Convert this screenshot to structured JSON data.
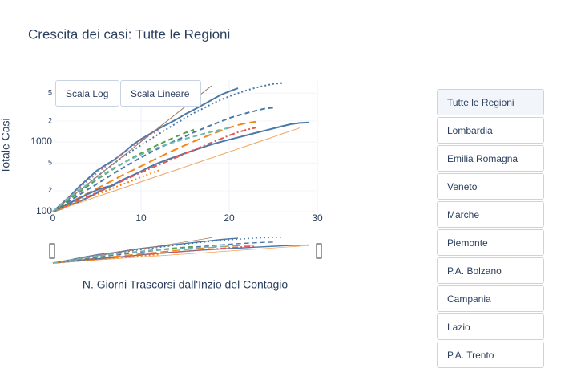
{
  "chart_data": {
    "type": "line",
    "title": "Crescita dei casi: Tutte le Regioni",
    "x_label": "N. Giorni Trascorsi dall'Inzio del Contagio",
    "y_label": "Totale Casi",
    "log_y": true,
    "grid": true,
    "xlim": [
      0,
      30
    ],
    "xticks": [
      0,
      10,
      20,
      30
    ],
    "ylim": [
      100,
      7700
    ],
    "yticks": [
      100,
      {
        "value": 200,
        "label": "2"
      },
      {
        "value": 500,
        "label": "5"
      },
      1000,
      {
        "value": 2000,
        "label": "2"
      },
      {
        "value": 5000,
        "label": "5"
      }
    ],
    "series": [
      {
        "color": "#4c78a8",
        "dash": "solid",
        "width": 2,
        "x": [
          0,
          1,
          2,
          3,
          4,
          5,
          6,
          7,
          8,
          9,
          10,
          11,
          12,
          13,
          14,
          15,
          16,
          17,
          18,
          19,
          20,
          21
        ],
        "values": [
          100,
          130,
          170,
          230,
          300,
          390,
          470,
          560,
          700,
          900,
          1100,
          1300,
          1550,
          1800,
          2100,
          2500,
          2900,
          3400,
          4000,
          4700,
          5300,
          5900
        ]
      },
      {
        "color": "#4c78a8",
        "dash": "dot",
        "width": 2,
        "x": [
          0,
          1,
          2,
          3,
          4,
          5,
          6,
          7,
          8,
          9,
          10,
          11,
          12,
          13,
          14,
          15,
          16,
          17,
          18,
          19,
          20,
          21,
          22,
          23,
          24,
          25,
          26
        ],
        "values": [
          100,
          125,
          160,
          200,
          250,
          320,
          400,
          500,
          620,
          750,
          900,
          1080,
          1300,
          1550,
          1850,
          2200,
          2600,
          3000,
          3500,
          4000,
          4500,
          5000,
          5500,
          6000,
          6400,
          6800,
          7000
        ]
      },
      {
        "color": "#4c78a8",
        "dash": "dash",
        "width": 2,
        "x": [
          0,
          1,
          2,
          3,
          4,
          5,
          6,
          7,
          8,
          9,
          10,
          11,
          12,
          13,
          14,
          15,
          16,
          17,
          18,
          19,
          20,
          21,
          22,
          23,
          24,
          25
        ],
        "values": [
          100,
          120,
          145,
          175,
          210,
          250,
          300,
          360,
          430,
          510,
          600,
          700,
          810,
          930,
          1060,
          1200,
          1380,
          1550,
          1750,
          1950,
          2200,
          2400,
          2600,
          2800,
          3000,
          3100
        ]
      },
      {
        "color": "#4c78a8",
        "dash": "solid",
        "width": 2,
        "x": [
          0,
          1,
          2,
          3,
          4,
          5,
          6,
          7,
          8,
          9,
          10,
          11,
          12,
          13,
          14,
          15,
          16,
          17,
          18,
          19,
          20,
          21,
          22,
          23,
          24,
          25,
          26,
          27,
          28,
          29
        ],
        "values": [
          100,
          110,
          125,
          140,
          160,
          185,
          215,
          250,
          290,
          330,
          380,
          440,
          500,
          560,
          620,
          690,
          760,
          840,
          920,
          1000,
          1080,
          1160,
          1250,
          1350,
          1450,
          1560,
          1680,
          1800,
          1870,
          1900
        ]
      },
      {
        "color": "#f58518",
        "dash": "longdash",
        "width": 2,
        "x": [
          0,
          1,
          2,
          3,
          4,
          5,
          6,
          7,
          8,
          9,
          10,
          11,
          12,
          13,
          14,
          15,
          16,
          17,
          18,
          19,
          20,
          21,
          22,
          23
        ],
        "values": [
          100,
          115,
          135,
          160,
          185,
          215,
          250,
          290,
          340,
          390,
          450,
          520,
          600,
          690,
          790,
          900,
          1020,
          1150,
          1290,
          1440,
          1600,
          1750,
          1870,
          1950
        ]
      },
      {
        "color": "#e45756",
        "dash": "dashdot",
        "width": 2,
        "x": [
          0,
          1,
          2,
          3,
          4,
          5,
          6,
          7,
          8,
          9,
          10,
          11,
          12,
          13,
          14,
          15,
          16,
          17,
          18,
          19,
          20,
          21,
          22,
          23
        ],
        "values": [
          100,
          112,
          128,
          145,
          165,
          190,
          215,
          245,
          280,
          320,
          365,
          415,
          470,
          530,
          600,
          680,
          770,
          870,
          980,
          1100,
          1240,
          1380,
          1500,
          1600
        ]
      },
      {
        "color": "#f2a35e",
        "dash": "solid",
        "width": 1,
        "x": [
          0,
          1,
          2,
          3,
          4,
          5,
          6,
          7,
          8,
          9,
          10,
          11,
          12,
          13,
          14,
          15,
          16,
          17,
          18,
          19,
          20,
          21,
          22,
          23,
          24,
          25,
          26,
          27,
          28
        ],
        "values": [
          100,
          110,
          122,
          134,
          148,
          164,
          181,
          199,
          220,
          243,
          268,
          296,
          327,
          361,
          398,
          440,
          485,
          536,
          591,
          653,
          721,
          796,
          878,
          970,
          1070,
          1180,
          1310,
          1440,
          1590
        ]
      },
      {
        "color": "#54a24b",
        "dash": "dash",
        "width": 2,
        "x": [
          0,
          1,
          2,
          3,
          4,
          5,
          6,
          7,
          8,
          9,
          10,
          11,
          12,
          13,
          14,
          15,
          16
        ],
        "values": [
          100,
          125,
          155,
          190,
          235,
          290,
          350,
          420,
          500,
          590,
          690,
          800,
          920,
          1050,
          1200,
          1350,
          1500
        ]
      },
      {
        "color": "#b279a2",
        "dash": "dot",
        "width": 2,
        "x": [
          0,
          1,
          2,
          3,
          4,
          5,
          6,
          7,
          8,
          9,
          10,
          11,
          12
        ],
        "values": [
          100,
          130,
          170,
          220,
          280,
          360,
          450,
          560,
          700,
          860,
          1050,
          1250,
          1450
        ]
      },
      {
        "color": "#4c78a8",
        "dash": "solid",
        "width": 2,
        "x": [
          0,
          1,
          2,
          3,
          4,
          5,
          6,
          7
        ],
        "values": [
          100,
          115,
          135,
          155,
          180,
          205,
          225,
          240
        ]
      },
      {
        "color": "#9d755d",
        "dash": "solid",
        "width": 1,
        "x": [
          0,
          1,
          2,
          3,
          4,
          5,
          6,
          7,
          8,
          9,
          10,
          11,
          12,
          13,
          14,
          15,
          16,
          17,
          18
        ],
        "values": [
          100,
          126,
          159,
          200,
          252,
          317,
          400,
          504,
          635,
          800,
          1008,
          1270,
          1600,
          2016,
          2540,
          3200,
          4032,
          5080,
          6400
        ]
      },
      {
        "color": "#f58518",
        "dash": "dot",
        "width": 2,
        "x": [
          0,
          1,
          2,
          3,
          4,
          5,
          6,
          7,
          8,
          9,
          10,
          11,
          12
        ],
        "values": [
          100,
          112,
          126,
          141,
          158,
          177,
          198,
          222,
          249,
          279,
          313,
          350,
          390
        ]
      },
      {
        "color": "#72b7b2",
        "dash": "dash",
        "width": 2,
        "x": [
          0,
          1,
          2,
          3,
          4,
          5,
          6,
          7,
          8,
          9,
          10,
          11,
          12,
          13,
          14,
          15,
          16,
          17,
          18,
          19,
          20
        ],
        "values": [
          100,
          130,
          165,
          205,
          250,
          300,
          360,
          430,
          500,
          580,
          660,
          750,
          840,
          930,
          1020,
          1110,
          1200,
          1300,
          1400,
          1500,
          1600
        ]
      }
    ]
  },
  "scale_buttons": [
    "Scala Log",
    "Scala Lineare"
  ],
  "region_buttons": [
    "Tutte le Regioni",
    "Lombardia",
    "Emilia Romagna",
    "Veneto",
    "Marche",
    "Piemonte",
    "P.A. Bolzano",
    "Campania",
    "Lazio",
    "P.A. Trento"
  ]
}
